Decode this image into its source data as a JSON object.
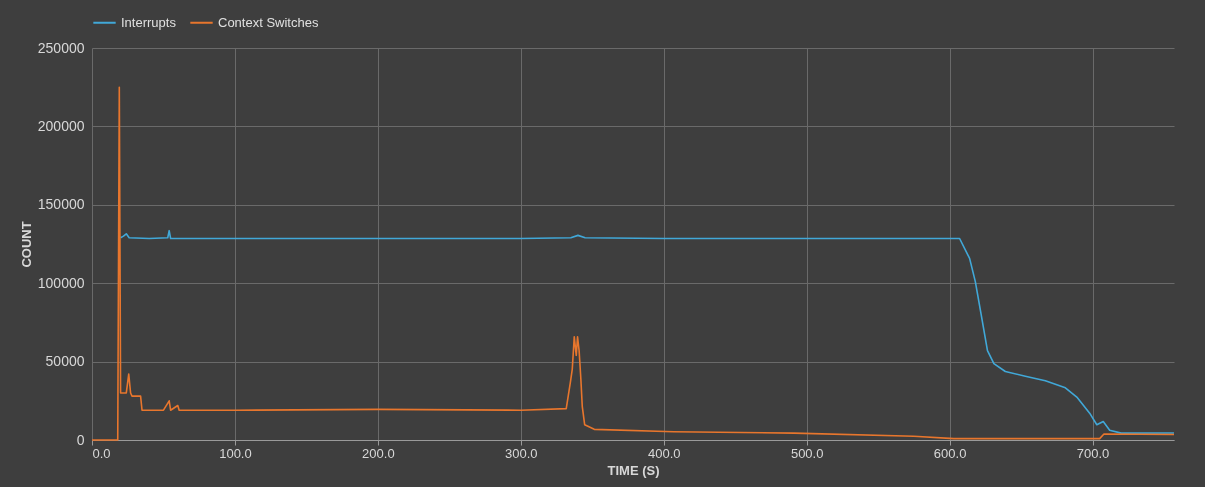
{
  "chart_data": {
    "type": "line",
    "xlabel": "TIME (S)",
    "ylabel": "COUNT",
    "xlim": [
      0,
      757
    ],
    "ylim": [
      0,
      250000
    ],
    "xticks": [
      {
        "value": 0,
        "label": "0.0"
      },
      {
        "value": 100,
        "label": "100.0"
      },
      {
        "value": 200,
        "label": "200.0"
      },
      {
        "value": 300,
        "label": "300.0"
      },
      {
        "value": 400,
        "label": "400.0"
      },
      {
        "value": 500,
        "label": "500.0"
      },
      {
        "value": 600,
        "label": "600.0"
      },
      {
        "value": 700,
        "label": "700.0"
      }
    ],
    "yticks": [
      0,
      50000,
      100000,
      150000,
      200000,
      250000
    ],
    "grid": true,
    "legend": "top",
    "marker": "none",
    "line_style": "solid",
    "series": [
      {
        "name": "Interrupts",
        "color": "#41a8d8",
        "x": [
          20,
          22,
          24,
          26,
          40,
          53,
          54,
          55,
          100,
          200,
          300,
          335,
          340,
          345,
          400,
          500,
          607,
          614,
          618,
          622,
          626.5,
          631,
          639,
          653,
          667,
          681,
          689,
          698,
          703,
          707.5,
          712,
          720,
          757
        ],
        "values": [
          129000,
          130000,
          131500,
          129000,
          128500,
          129000,
          133500,
          128500,
          128500,
          128500,
          128500,
          129000,
          130500,
          129000,
          128500,
          128500,
          128500,
          115800,
          101000,
          80500,
          57000,
          48700,
          43700,
          40700,
          37800,
          33300,
          27400,
          17100,
          9700,
          11800,
          6200,
          4400,
          4500
        ]
      },
      {
        "name": "Context Switches",
        "color": "#e8762d",
        "x": [
          0,
          18,
          19.1,
          20,
          24,
          25.7,
          27,
          28,
          34,
          35,
          50,
          54,
          55,
          60,
          61,
          100,
          200,
          300,
          331.8,
          334.6,
          336,
          337.4,
          338.8,
          339.7,
          340.8,
          342,
          343,
          344.7,
          351.4,
          407,
          491,
          575,
          603,
          705,
          708,
          757
        ],
        "values": [
          0,
          0,
          225000,
          30000,
          30000,
          42000,
          30000,
          28000,
          28000,
          19000,
          19000,
          25000,
          19000,
          22000,
          19000,
          19000,
          19500,
          19000,
          20000,
          36300,
          45100,
          65800,
          54000,
          65800,
          57000,
          39200,
          21500,
          9700,
          6800,
          5300,
          4400,
          2400,
          900,
          900,
          3800,
          3500
        ]
      }
    ]
  }
}
